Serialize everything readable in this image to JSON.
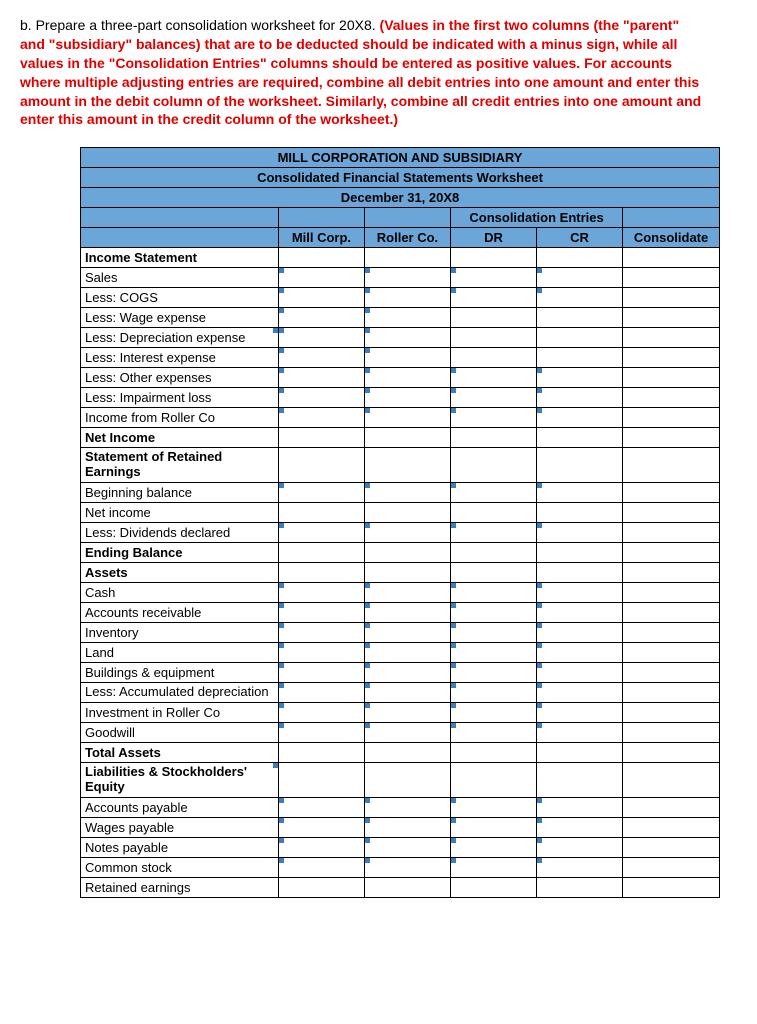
{
  "prompt": {
    "lead": "b. Prepare a three-part consolidation worksheet for 20X8. ",
    "red": "(Values in the first two columns (the \"parent\" and \"subsidiary\" balances) that are to be deducted should be indicated with a minus sign, while all values in the \"Consolidation Entries\" columns should be entered as positive values. For accounts where multiple adjusting entries are required, combine all debit entries into one amount and enter this amount in the debit column of the worksheet. Similarly, combine all credit entries into one amount and enter this amount in the credit column of the worksheet.)"
  },
  "table": {
    "title1": "MILL CORPORATION AND SUBSIDIARY",
    "title2": "Consolidated Financial Statements Worksheet",
    "title3": "December 31, 20X8",
    "consol_hdr": "Consolidation Entries",
    "cols": {
      "mill": "Mill Corp.",
      "roller": "Roller Co.",
      "dr": "DR",
      "cr": "CR",
      "cons": "Consolidate"
    },
    "rows": [
      {
        "label": "Income Statement",
        "bold": true,
        "inputs": [
          false,
          false,
          false,
          false,
          false
        ]
      },
      {
        "label": "Sales",
        "inputs": [
          true,
          true,
          true,
          true,
          false
        ]
      },
      {
        "label": "Less: COGS",
        "inputs": [
          true,
          true,
          true,
          true,
          false
        ]
      },
      {
        "label": "Less: Wage expense",
        "inputs": [
          true,
          true,
          false,
          false,
          false
        ]
      },
      {
        "label": "Less: Depreciation expense",
        "inputs": [
          true,
          true,
          false,
          false,
          false
        ],
        "tickLabel": true
      },
      {
        "label": "Less: Interest expense",
        "inputs": [
          true,
          true,
          false,
          false,
          false
        ]
      },
      {
        "label": "Less: Other expenses",
        "inputs": [
          true,
          true,
          true,
          true,
          false
        ]
      },
      {
        "label": "Less: Impairment loss",
        "inputs": [
          true,
          true,
          true,
          true,
          false
        ]
      },
      {
        "label": "Income from Roller Co",
        "inputs": [
          true,
          true,
          true,
          true,
          false
        ]
      },
      {
        "label": "Net Income",
        "bold": true,
        "inputs": [
          false,
          false,
          false,
          false,
          false
        ]
      },
      {
        "label": "Statement of Retained Earnings",
        "bold": true,
        "wrap": true,
        "inputs": [
          false,
          false,
          false,
          false,
          false
        ]
      },
      {
        "label": "Beginning balance",
        "inputs": [
          true,
          true,
          true,
          true,
          false
        ]
      },
      {
        "label": "Net income",
        "inputs": [
          false,
          false,
          false,
          false,
          false
        ]
      },
      {
        "label": "Less: Dividends declared",
        "inputs": [
          true,
          true,
          true,
          true,
          false
        ]
      },
      {
        "label": "Ending Balance",
        "bold": true,
        "inputs": [
          false,
          false,
          false,
          false,
          false
        ]
      },
      {
        "label": "Assets",
        "bold": true,
        "inputs": [
          false,
          false,
          false,
          false,
          false
        ]
      },
      {
        "label": "Cash",
        "inputs": [
          true,
          true,
          true,
          true,
          false
        ]
      },
      {
        "label": "Accounts receivable",
        "inputs": [
          true,
          true,
          true,
          true,
          false
        ]
      },
      {
        "label": "Inventory",
        "inputs": [
          true,
          true,
          true,
          true,
          false
        ]
      },
      {
        "label": "Land",
        "inputs": [
          true,
          true,
          true,
          true,
          false
        ]
      },
      {
        "label": "Buildings & equipment",
        "inputs": [
          true,
          true,
          true,
          true,
          false
        ]
      },
      {
        "label": "Less: Accumulated depreciation",
        "wrap": true,
        "inputs": [
          true,
          true,
          true,
          true,
          false
        ]
      },
      {
        "label": "Investment in Roller Co",
        "inputs": [
          true,
          true,
          true,
          true,
          false
        ]
      },
      {
        "label": "Goodwill",
        "inputs": [
          true,
          true,
          true,
          true,
          false
        ]
      },
      {
        "label": "Total Assets",
        "bold": true,
        "inputs": [
          false,
          false,
          false,
          false,
          false
        ]
      },
      {
        "label": "Liabilities & Stockholders' Equity",
        "bold": true,
        "wrap": true,
        "inputs": [
          false,
          false,
          false,
          false,
          false
        ],
        "tickLabel": true
      },
      {
        "label": "Accounts payable",
        "inputs": [
          true,
          true,
          true,
          true,
          false
        ]
      },
      {
        "label": "Wages payable",
        "inputs": [
          true,
          true,
          true,
          true,
          false
        ]
      },
      {
        "label": "Notes payable",
        "inputs": [
          true,
          true,
          true,
          true,
          false
        ]
      },
      {
        "label": "Common stock",
        "inputs": [
          true,
          true,
          true,
          true,
          false
        ]
      },
      {
        "label": "Retained earnings",
        "inputs": [
          false,
          false,
          false,
          false,
          false
        ]
      }
    ]
  },
  "style": {
    "header_bg": "#6ca6d9",
    "tick_color": "#3a7fbf",
    "red_text": "#e00000",
    "border": "#000000"
  }
}
